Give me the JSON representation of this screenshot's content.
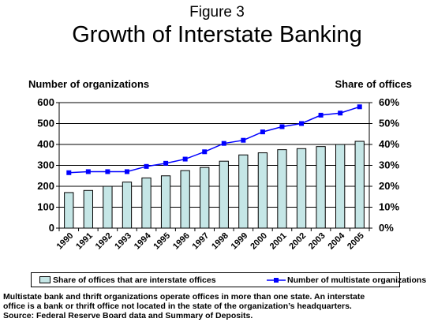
{
  "chart_data": {
    "type": "bar+line",
    "figure_label": "Figure 3",
    "title": "Growth of Interstate Banking",
    "left_axis_title": "Number of organizations",
    "right_axis_title": "Share of offices",
    "categories": [
      "1990",
      "1991",
      "1992",
      "1993",
      "1994",
      "1995",
      "1996",
      "1997",
      "1998",
      "1999",
      "2000",
      "2001",
      "2002",
      "2003",
      "2004",
      "2005"
    ],
    "left_axis": {
      "min": 0,
      "max": 600,
      "ticks": [
        "0",
        "100",
        "200",
        "300",
        "400",
        "500",
        "600"
      ]
    },
    "right_axis": {
      "min": 0,
      "max": 60,
      "ticks": [
        "0%",
        "10%",
        "20%",
        "30%",
        "40%",
        "50%",
        "60%"
      ]
    },
    "series": [
      {
        "name": "Share of offices that are interstate offices",
        "type": "bar",
        "axis": "right",
        "color": "#c5e6e6",
        "values": [
          17,
          18,
          20,
          22,
          24,
          25,
          27.5,
          29,
          32,
          35,
          36,
          37.5,
          38,
          39,
          40,
          41.5
        ]
      },
      {
        "name": "Number of multistate organizations",
        "type": "line",
        "axis": "left",
        "color": "#0000ff",
        "values": [
          265,
          270,
          270,
          270,
          295,
          310,
          330,
          365,
          405,
          420,
          460,
          485,
          500,
          540,
          550,
          580
        ]
      }
    ],
    "grid": "horizontal"
  },
  "note": {
    "line1": "Multistate bank and thrift organizations operate offices in more than one state.  An interstate",
    "line2": "office is a bank or thrift office not located in the state of the organization’s headquarters.",
    "line3": "Source: Federal Reserve Board data and Summary of Deposits."
  }
}
